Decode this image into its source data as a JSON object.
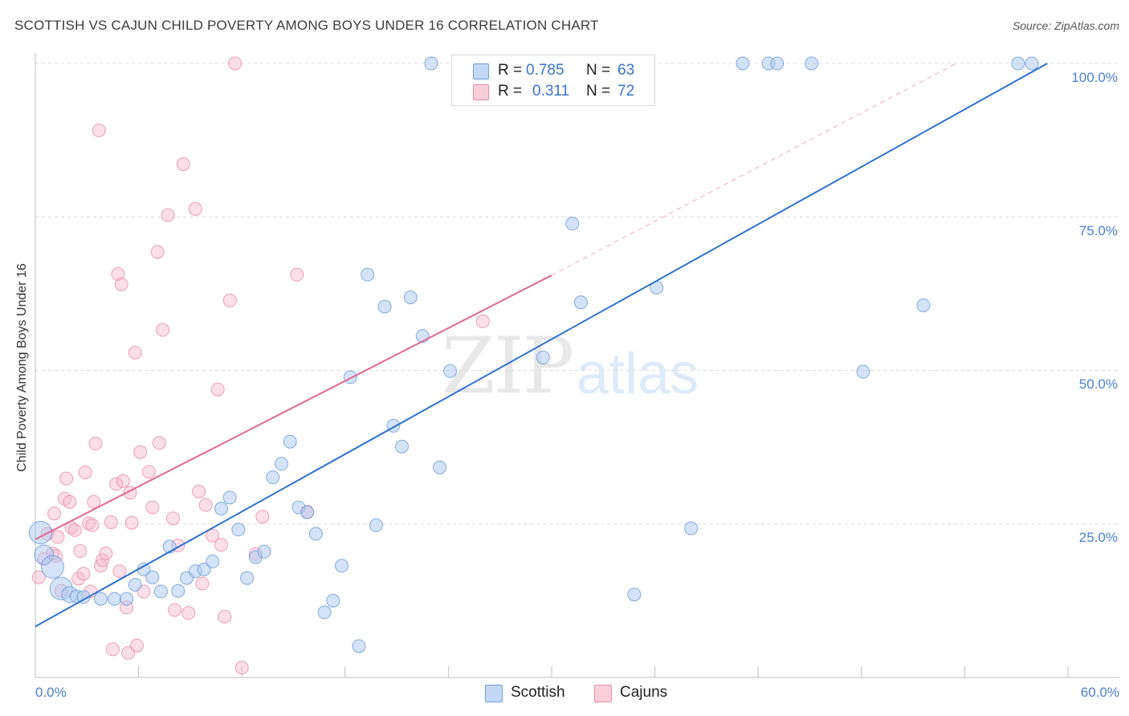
{
  "header": {
    "title": "SCOTTISH VS CAJUN CHILD POVERTY AMONG BOYS UNDER 16 CORRELATION CHART",
    "source": "Source: ZipAtlas.com"
  },
  "watermark": {
    "zip": "ZIP",
    "atlas": "atlas"
  },
  "legend": {
    "rows": [
      {
        "r_label": "R =",
        "r_value": "0.785",
        "n_label": "N =",
        "n_value": "63",
        "color": "#a9c7f0"
      },
      {
        "r_label": "R =",
        "r_value": "0.311",
        "n_label": "N =",
        "n_value": "72",
        "color": "#f6b9cc"
      }
    ]
  },
  "bottom_legend": {
    "scottish": "Scottish",
    "cajuns": "Cajuns"
  },
  "colors": {
    "scottish_fill": "#a9c7f0",
    "scottish_stroke": "#6f9fdc",
    "scottish_line": "#2f72d0",
    "cajun_fill": "#f6b9cc",
    "cajun_stroke": "#e88aa6",
    "cajun_line": "#e06892",
    "tick_text": "#4a7fd0"
  },
  "chart_data": {
    "type": "scatter",
    "title": "SCOTTISH VS CAJUN CHILD POVERTY AMONG BOYS UNDER 16 CORRELATION CHART",
    "xlabel": "",
    "ylabel": "Child Poverty Among Boys Under 16",
    "xlim": [
      0,
      60
    ],
    "ylim": [
      0,
      100
    ],
    "x_tick_labels": [
      "0.0%",
      "60.0%"
    ],
    "y_ticks": [
      25,
      50,
      75,
      100
    ],
    "y_tick_labels": [
      "25.0%",
      "50.0%",
      "75.0%",
      "100.0%"
    ],
    "grid": true,
    "series": [
      {
        "name": "Scottish",
        "R": 0.785,
        "N": 63,
        "trend": {
          "x": [
            0,
            58.8
          ],
          "y": [
            8.3,
            100
          ]
        },
        "points": [
          [
            0.3,
            23.6,
            14
          ],
          [
            0.5,
            20,
            12
          ],
          [
            1,
            18,
            14
          ],
          [
            1.5,
            14.5,
            14
          ],
          [
            2,
            13.5,
            10
          ],
          [
            2.4,
            13.2,
            8
          ],
          [
            2.8,
            13.1,
            8
          ],
          [
            3.8,
            12.8,
            8
          ],
          [
            4.6,
            12.8,
            8
          ],
          [
            5.3,
            12.8,
            8
          ],
          [
            5.8,
            15.1,
            8
          ],
          [
            6.3,
            17.6,
            8
          ],
          [
            6.8,
            16.3,
            8
          ],
          [
            7.3,
            14,
            8
          ],
          [
            7.8,
            21.3,
            8
          ],
          [
            8.3,
            14.1,
            8
          ],
          [
            8.8,
            16.2,
            8
          ],
          [
            9.3,
            17.3,
            8
          ],
          [
            9.8,
            17.6,
            8
          ],
          [
            10.3,
            18.9,
            8
          ],
          [
            10.8,
            27.5,
            8
          ],
          [
            11.3,
            29.3,
            8
          ],
          [
            11.8,
            24.1,
            8
          ],
          [
            12.3,
            16.2,
            8
          ],
          [
            12.8,
            19.6,
            8
          ],
          [
            13.3,
            20.5,
            8
          ],
          [
            13.8,
            32.6,
            8
          ],
          [
            14.3,
            34.8,
            8
          ],
          [
            14.8,
            38.4,
            8
          ],
          [
            15.3,
            27.7,
            8
          ],
          [
            15.8,
            26.9,
            8
          ],
          [
            16.3,
            23.4,
            8
          ],
          [
            16.8,
            10.6,
            8
          ],
          [
            17.3,
            12.5,
            8
          ],
          [
            17.8,
            18.2,
            8
          ],
          [
            18.3,
            48.9,
            8
          ],
          [
            18.8,
            5.1,
            8
          ],
          [
            19.3,
            65.6,
            8
          ],
          [
            19.8,
            24.8,
            8
          ],
          [
            20.3,
            60.4,
            8
          ],
          [
            20.8,
            41,
            8
          ],
          [
            21.3,
            37.6,
            8
          ],
          [
            21.8,
            61.9,
            8
          ],
          [
            22.5,
            55.6,
            8
          ],
          [
            23,
            100,
            8
          ],
          [
            23.5,
            34.2,
            8
          ],
          [
            24.1,
            49.9,
            8
          ],
          [
            29.5,
            52.1,
            8
          ],
          [
            31.2,
            73.9,
            8
          ],
          [
            31.7,
            61.1,
            8
          ],
          [
            34.8,
            13.5,
            8
          ],
          [
            36.1,
            63.5,
            8
          ],
          [
            38.1,
            24.3,
            8
          ],
          [
            41.1,
            100,
            8
          ],
          [
            42.6,
            100,
            8
          ],
          [
            43.1,
            100,
            8
          ],
          [
            45.1,
            100,
            8
          ],
          [
            48.1,
            49.8,
            8
          ],
          [
            51.6,
            60.6,
            8
          ],
          [
            57.1,
            100,
            8
          ],
          [
            57.9,
            100,
            8
          ]
        ]
      },
      {
        "name": "Cajuns",
        "R": 0.311,
        "N": 72,
        "trend": {
          "x": [
            0,
            30
          ],
          "y": [
            22.5,
            65.5
          ]
        },
        "trend_extension": {
          "x": [
            30,
            53.5
          ],
          "y": [
            65.5,
            100
          ]
        },
        "points": [
          [
            0.2,
            16.3,
            8
          ],
          [
            0.5,
            19.3,
            8
          ],
          [
            0.7,
            23.4,
            8
          ],
          [
            1,
            20.2,
            8
          ],
          [
            1.2,
            19.8,
            8
          ],
          [
            1.1,
            26.7,
            8
          ],
          [
            1.3,
            22.9,
            8
          ],
          [
            1.5,
            14.1,
            8
          ],
          [
            1.7,
            29.1,
            8
          ],
          [
            1.8,
            32.4,
            8
          ],
          [
            2,
            28.6,
            8
          ],
          [
            2.1,
            24.4,
            8
          ],
          [
            2.3,
            24,
            8
          ],
          [
            2.5,
            16.1,
            8
          ],
          [
            2.6,
            20.6,
            8
          ],
          [
            2.8,
            16.9,
            8
          ],
          [
            2.9,
            33.4,
            8
          ],
          [
            3.1,
            25.1,
            8
          ],
          [
            3.2,
            14,
            8
          ],
          [
            3.3,
            24.8,
            8
          ],
          [
            3.4,
            28.6,
            8
          ],
          [
            3.5,
            38.1,
            8
          ],
          [
            3.7,
            89.1,
            8
          ],
          [
            3.8,
            18.2,
            8
          ],
          [
            3.9,
            19.1,
            8
          ],
          [
            4.1,
            20.2,
            8
          ],
          [
            4.4,
            25.3,
            8
          ],
          [
            4.5,
            4.6,
            8
          ],
          [
            4.7,
            31.5,
            8
          ],
          [
            4.8,
            65.7,
            8
          ],
          [
            4.9,
            17.3,
            8
          ],
          [
            5,
            64,
            8
          ],
          [
            5.1,
            32,
            8
          ],
          [
            5.3,
            11.4,
            8
          ],
          [
            5.4,
            4,
            8
          ],
          [
            5.5,
            30.1,
            8
          ],
          [
            5.6,
            25.2,
            8
          ],
          [
            5.8,
            52.9,
            8
          ],
          [
            5.9,
            5.2,
            8
          ],
          [
            6.1,
            36.7,
            8
          ],
          [
            6.3,
            14,
            8
          ],
          [
            6.6,
            33.5,
            8
          ],
          [
            6.8,
            27.7,
            8
          ],
          [
            7.1,
            69.3,
            8
          ],
          [
            7.2,
            38.2,
            8
          ],
          [
            7.4,
            56.6,
            8
          ],
          [
            7.7,
            75.3,
            8
          ],
          [
            8,
            25.9,
            8
          ],
          [
            8.1,
            11,
            8
          ],
          [
            8.3,
            21.5,
            8
          ],
          [
            8.6,
            83.6,
            8
          ],
          [
            8.9,
            10.5,
            8
          ],
          [
            9.3,
            76.3,
            8
          ],
          [
            9.5,
            30.3,
            8
          ],
          [
            9.7,
            15.3,
            8
          ],
          [
            9.9,
            28.1,
            8
          ],
          [
            10.3,
            23.1,
            8
          ],
          [
            10.6,
            46.9,
            8
          ],
          [
            10.8,
            21.6,
            8
          ],
          [
            11,
            9.9,
            8
          ],
          [
            11.3,
            61.4,
            8
          ],
          [
            11.6,
            100,
            8
          ],
          [
            12,
            1.6,
            8
          ],
          [
            12.8,
            20.1,
            8
          ],
          [
            13.2,
            26.2,
            8
          ],
          [
            15.2,
            65.6,
            8
          ],
          [
            15.8,
            27,
            8
          ],
          [
            26,
            58,
            8
          ]
        ]
      }
    ]
  }
}
